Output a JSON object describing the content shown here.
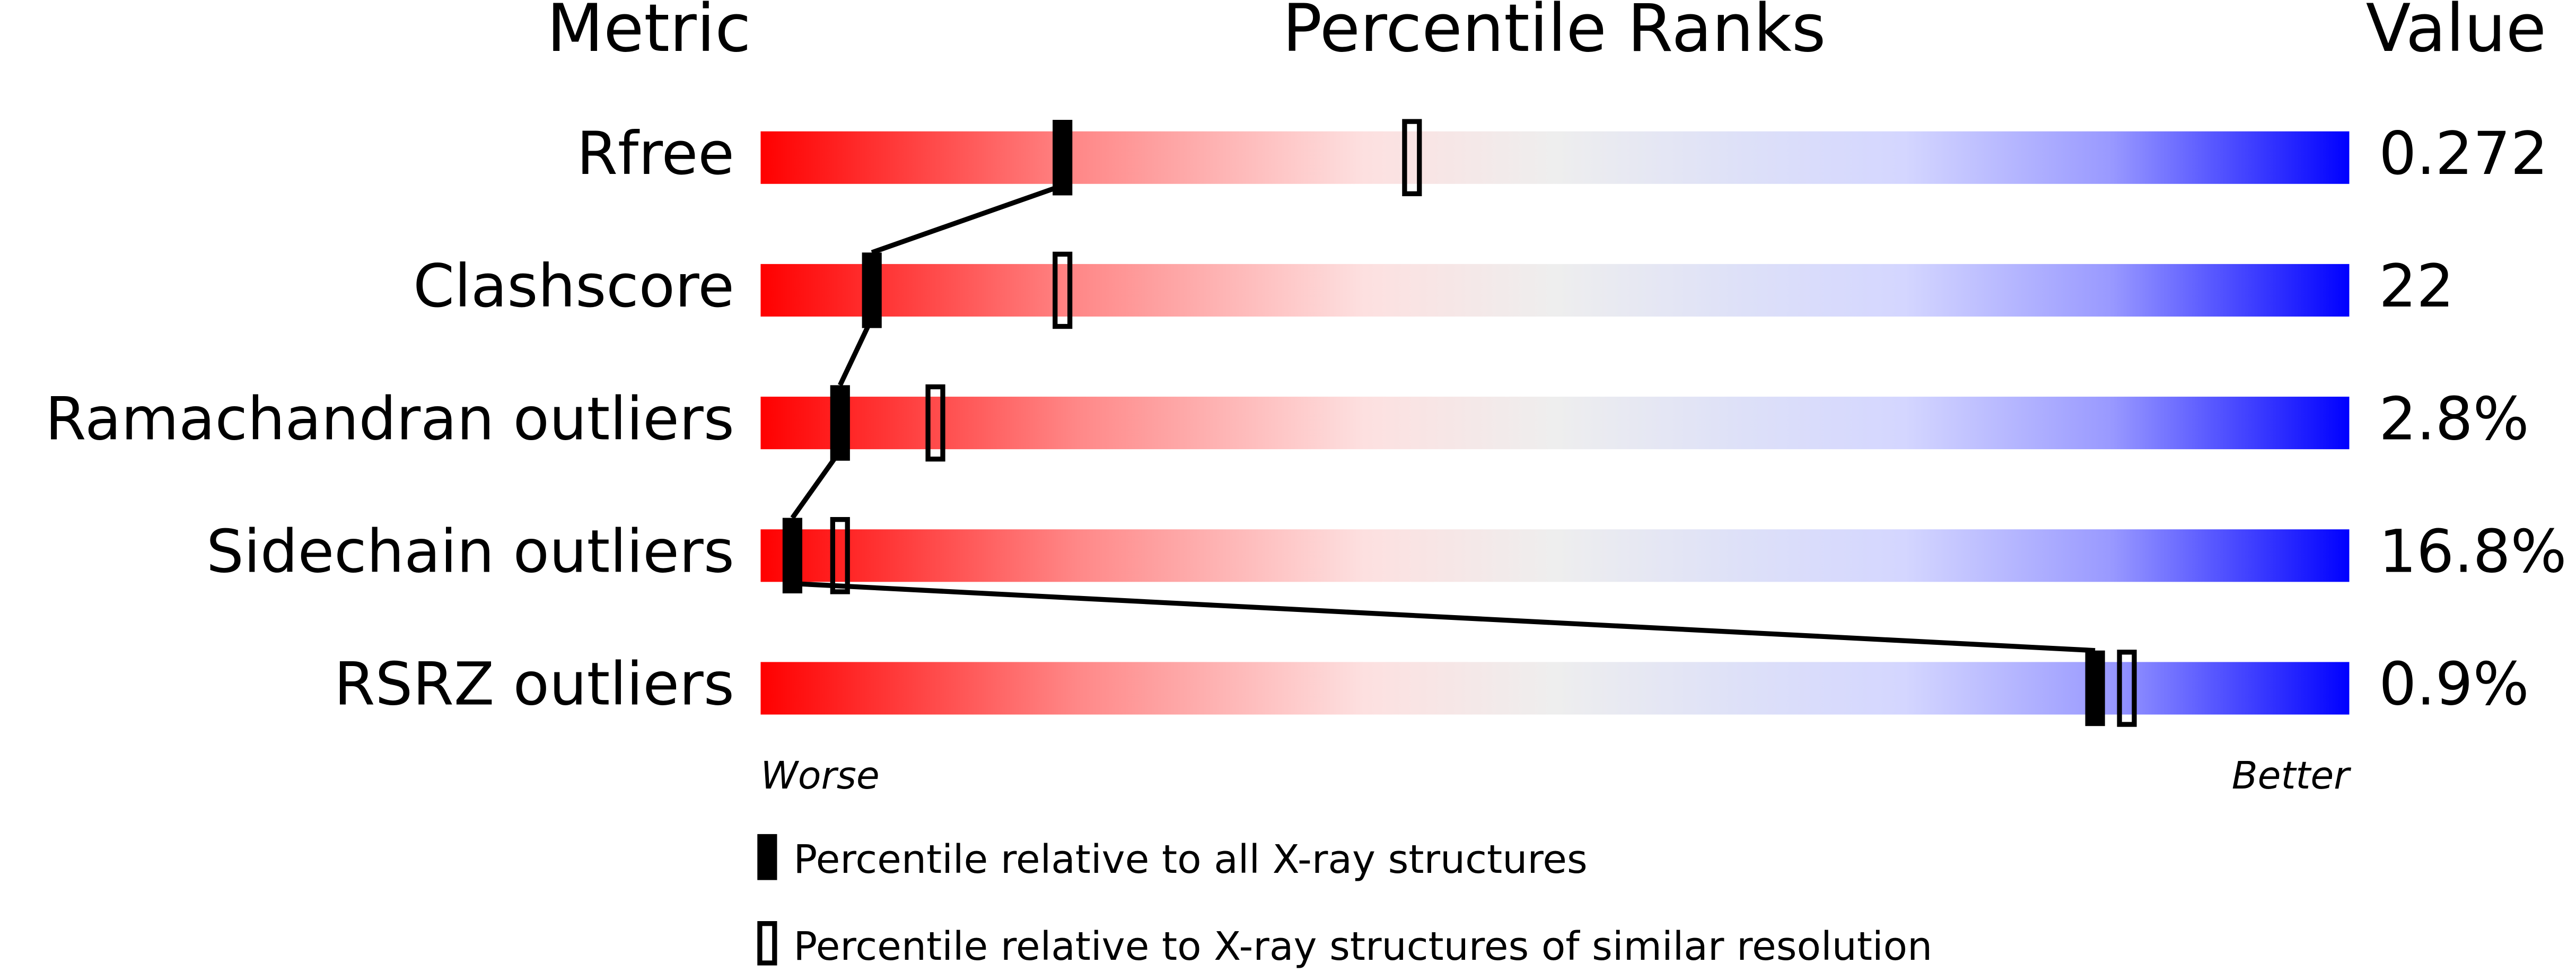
{
  "header": {
    "metric": "Metric",
    "title": "Percentile Ranks",
    "value": "Value"
  },
  "axis": {
    "xlim": [
      0,
      100
    ],
    "worse": "Worse",
    "better": "Better"
  },
  "metrics": [
    {
      "name": "Rfree",
      "value": "0.272",
      "percentile_all": 19,
      "percentile_similar": 41
    },
    {
      "name": "Clashscore",
      "value": "22",
      "percentile_all": 7,
      "percentile_similar": 19
    },
    {
      "name": "Ramachandran outliers",
      "value": "2.8%",
      "percentile_all": 5,
      "percentile_similar": 11
    },
    {
      "name": "Sidechain outliers",
      "value": "16.8%",
      "percentile_all": 2,
      "percentile_similar": 5
    },
    {
      "name": "RSRZ outliers",
      "value": "0.9%",
      "percentile_all": 84,
      "percentile_similar": 86
    }
  ],
  "legend": {
    "all": "Percentile relative to all X-ray structures",
    "similar": "Percentile relative to X-ray structures of similar resolution"
  }
}
